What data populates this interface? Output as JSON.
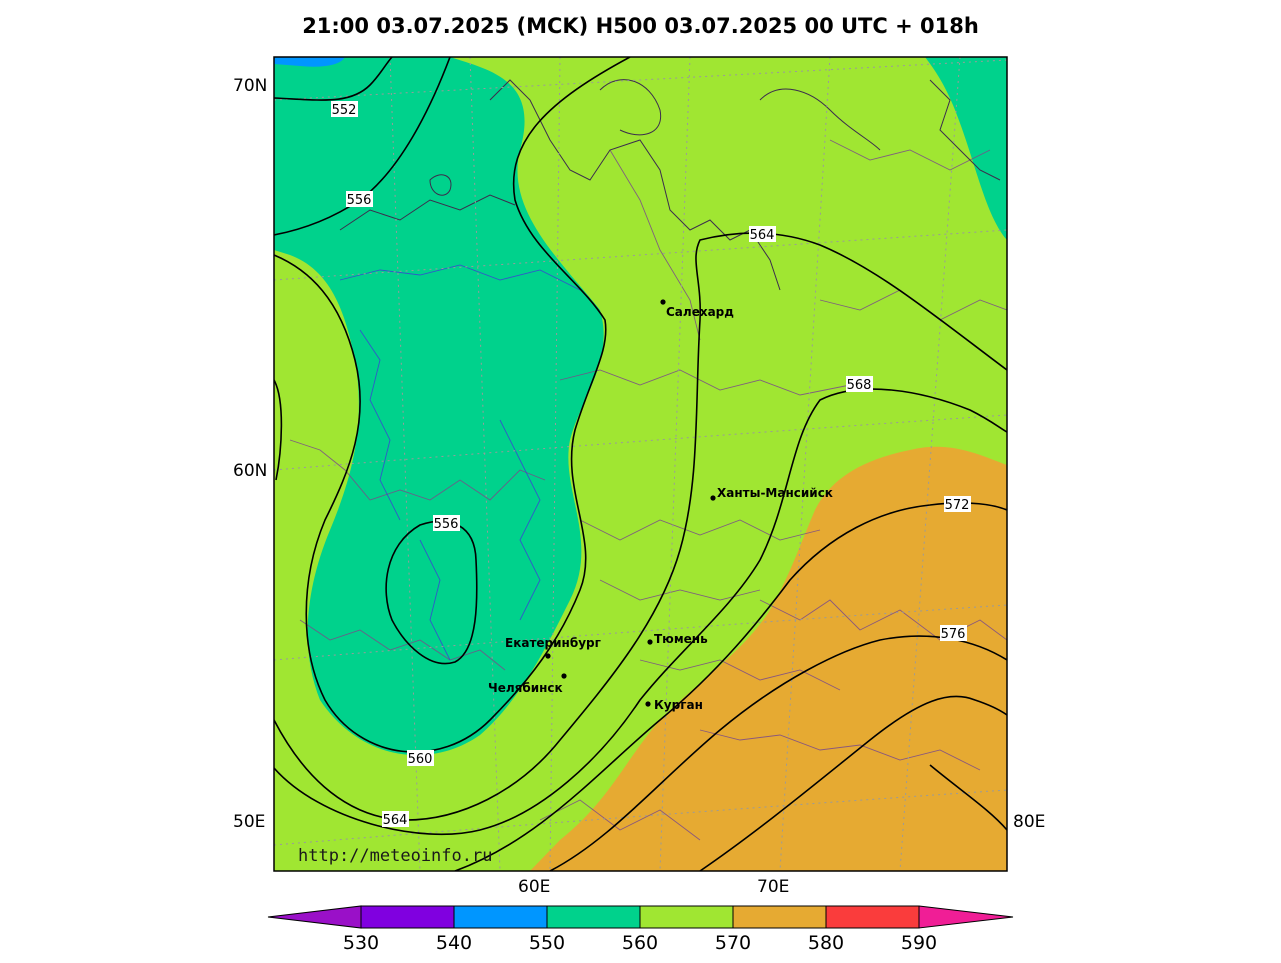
{
  "title": "21:00 03.07.2025 (MCK) H500  03.07.2025 00 UTC + 018h",
  "watermark": "http://meteoinfo.ru",
  "lat_labels": [
    "70N",
    "60N",
    "50E"
  ],
  "lon_labels": [
    "60E",
    "70E",
    "80E"
  ],
  "colorbar": {
    "ticks": [
      "530",
      "540",
      "550",
      "560",
      "570",
      "580",
      "590"
    ],
    "colors": {
      "below_530": "#9a10c8",
      "530_540": "#8000e0",
      "540_550": "#0096ff",
      "550_560": "#00d28c",
      "560_570": "#a0e632",
      "570_580": "#e6aa32",
      "580_590": "#fa3c3c",
      "above_590": "#f01e96"
    }
  },
  "fill_colors": {
    "band_550_560": "#00d28c",
    "band_560_570": "#a0e632",
    "band_570_580": "#e6aa32",
    "band_540_550": "#0096ff"
  },
  "contour_labels": [
    "552",
    "556",
    "556",
    "560",
    "564",
    "564",
    "568",
    "572",
    "576"
  ],
  "cities": [
    {
      "name": "Салехард"
    },
    {
      "name": "Ханты-Мансийск"
    },
    {
      "name": "Екатеринбург"
    },
    {
      "name": "Тюмень"
    },
    {
      "name": "Челябинск"
    },
    {
      "name": "Курган"
    }
  ]
}
